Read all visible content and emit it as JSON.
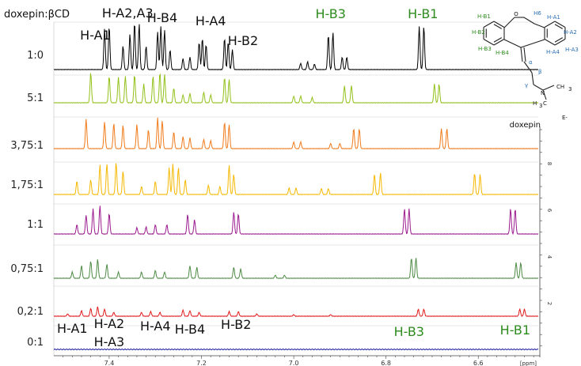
{
  "chart_data": {
    "type": "line",
    "title": "",
    "xlabel": "[ppm]",
    "ylabel": "",
    "x_range": [
      7.52,
      6.47
    ],
    "x_reversed": true,
    "x_ticks": [
      "7.4",
      "7.2",
      "7.0",
      "6.8",
      "6.6"
    ],
    "row_header": "doxepin:βCD",
    "series": [
      {
        "name": "1:0",
        "color": "#000000",
        "scale": 1.0,
        "labels_top": true,
        "peaks": [
          [
            7.41,
            52
          ],
          [
            7.4,
            55
          ],
          [
            7.37,
            30
          ],
          [
            7.355,
            45
          ],
          [
            7.345,
            60
          ],
          [
            7.335,
            58
          ],
          [
            7.32,
            30
          ],
          [
            7.295,
            48
          ],
          [
            7.288,
            55
          ],
          [
            7.28,
            50
          ],
          [
            7.268,
            25
          ],
          [
            7.24,
            14
          ],
          [
            7.225,
            16
          ],
          [
            7.205,
            35
          ],
          [
            7.198,
            40
          ],
          [
            7.19,
            32
          ],
          [
            7.15,
            40
          ],
          [
            7.142,
            35
          ],
          [
            7.133,
            25
          ],
          [
            6.985,
            8
          ],
          [
            6.97,
            10
          ],
          [
            6.955,
            7
          ],
          [
            6.925,
            44
          ],
          [
            6.915,
            47
          ],
          [
            6.895,
            16
          ],
          [
            6.885,
            16
          ],
          [
            6.728,
            55
          ],
          [
            6.718,
            55
          ]
        ]
      },
      {
        "name": "5:1",
        "color": "#92c11a",
        "scale": 0.85,
        "peaks": [
          [
            7.44,
            45
          ],
          [
            7.4,
            40
          ],
          [
            7.38,
            38
          ],
          [
            7.365,
            40
          ],
          [
            7.345,
            42
          ],
          [
            7.325,
            28
          ],
          [
            7.305,
            40
          ],
          [
            7.29,
            45
          ],
          [
            7.28,
            42
          ],
          [
            7.26,
            22
          ],
          [
            7.24,
            12
          ],
          [
            7.225,
            14
          ],
          [
            7.195,
            16
          ],
          [
            7.18,
            12
          ],
          [
            7.15,
            38
          ],
          [
            7.14,
            35
          ],
          [
            7.0,
            10
          ],
          [
            6.985,
            10
          ],
          [
            6.96,
            8
          ],
          [
            6.89,
            25
          ],
          [
            6.875,
            26
          ],
          [
            6.695,
            28
          ],
          [
            6.685,
            28
          ]
        ]
      },
      {
        "name": "3,75:1",
        "color": "#f07a1a",
        "scale": 0.85,
        "peaks": [
          [
            7.45,
            44
          ],
          [
            7.41,
            40
          ],
          [
            7.39,
            38
          ],
          [
            7.37,
            35
          ],
          [
            7.34,
            36
          ],
          [
            7.315,
            28
          ],
          [
            7.295,
            46
          ],
          [
            7.285,
            42
          ],
          [
            7.26,
            25
          ],
          [
            7.24,
            18
          ],
          [
            7.225,
            16
          ],
          [
            7.195,
            14
          ],
          [
            7.18,
            12
          ],
          [
            7.15,
            40
          ],
          [
            7.14,
            36
          ],
          [
            7.0,
            10
          ],
          [
            6.985,
            10
          ],
          [
            6.92,
            8
          ],
          [
            6.9,
            8
          ],
          [
            6.87,
            30
          ],
          [
            6.858,
            30
          ],
          [
            6.68,
            30
          ],
          [
            6.668,
            30
          ]
        ]
      },
      {
        "name": "1,75:1",
        "color": "#f5b800",
        "scale": 0.85,
        "peaks": [
          [
            7.47,
            20
          ],
          [
            7.44,
            22
          ],
          [
            7.42,
            44
          ],
          [
            7.405,
            46
          ],
          [
            7.385,
            48
          ],
          [
            7.37,
            35
          ],
          [
            7.33,
            12
          ],
          [
            7.3,
            20
          ],
          [
            7.27,
            40
          ],
          [
            7.262,
            46
          ],
          [
            7.25,
            40
          ],
          [
            7.235,
            22
          ],
          [
            7.185,
            14
          ],
          [
            7.16,
            12
          ],
          [
            7.14,
            44
          ],
          [
            7.13,
            30
          ],
          [
            7.01,
            10
          ],
          [
            6.995,
            10
          ],
          [
            6.94,
            9
          ],
          [
            6.925,
            9
          ],
          [
            6.825,
            30
          ],
          [
            6.812,
            32
          ],
          [
            6.608,
            32
          ],
          [
            6.596,
            30
          ]
        ]
      },
      {
        "name": "1:1",
        "color": "#9b1a8e",
        "scale": 1.0,
        "peaks": [
          [
            7.47,
            12
          ],
          [
            7.45,
            24
          ],
          [
            7.435,
            32
          ],
          [
            7.42,
            36
          ],
          [
            7.4,
            26
          ],
          [
            7.34,
            8
          ],
          [
            7.32,
            9
          ],
          [
            7.3,
            12
          ],
          [
            7.275,
            12
          ],
          [
            7.23,
            25
          ],
          [
            7.215,
            18
          ],
          [
            7.13,
            28
          ],
          [
            7.12,
            26
          ],
          [
            6.76,
            32
          ],
          [
            6.75,
            32
          ],
          [
            6.53,
            32
          ],
          [
            6.52,
            32
          ]
        ]
      },
      {
        "name": "0,75:1",
        "color": "#4e8a45",
        "scale": 1.0,
        "peaks": [
          [
            7.48,
            8
          ],
          [
            7.46,
            16
          ],
          [
            7.44,
            22
          ],
          [
            7.425,
            24
          ],
          [
            7.405,
            18
          ],
          [
            7.38,
            8
          ],
          [
            7.33,
            8
          ],
          [
            7.3,
            10
          ],
          [
            7.28,
            8
          ],
          [
            7.225,
            16
          ],
          [
            7.21,
            14
          ],
          [
            7.13,
            14
          ],
          [
            7.115,
            12
          ],
          [
            7.04,
            4
          ],
          [
            7.02,
            4
          ],
          [
            6.745,
            26
          ],
          [
            6.735,
            26
          ],
          [
            6.518,
            20
          ],
          [
            6.508,
            20
          ]
        ]
      },
      {
        "name": "0,2:1",
        "color": "#e0191b",
        "scale": 1.0,
        "peaks": [
          [
            7.49,
            3
          ],
          [
            7.46,
            7
          ],
          [
            7.44,
            10
          ],
          [
            7.425,
            12
          ],
          [
            7.41,
            9
          ],
          [
            7.39,
            5
          ],
          [
            7.33,
            5
          ],
          [
            7.31,
            6
          ],
          [
            7.29,
            5
          ],
          [
            7.24,
            8
          ],
          [
            7.225,
            7
          ],
          [
            7.205,
            5
          ],
          [
            7.14,
            6
          ],
          [
            7.12,
            6
          ],
          [
            7.08,
            3
          ],
          [
            7.0,
            2
          ],
          [
            6.92,
            2
          ],
          [
            6.73,
            9
          ],
          [
            6.718,
            9
          ],
          [
            6.51,
            9
          ],
          [
            6.5,
            9
          ]
        ]
      },
      {
        "name": "0:1",
        "color": "#1c1c9e",
        "scale": 1.0,
        "labels_bottom": true,
        "peaks": []
      }
    ],
    "peak_labels_top": [
      {
        "text": "H-A1",
        "x": 7.43,
        "color": "#111111"
      },
      {
        "text": "H-A2,A3",
        "x": 7.36,
        "color": "#111111"
      },
      {
        "text": "H-B4",
        "x": 7.285,
        "color": "#111111"
      },
      {
        "text": "H-A4",
        "x": 7.18,
        "color": "#111111"
      },
      {
        "text": "H-B2",
        "x": 7.11,
        "color": "#111111"
      },
      {
        "text": "H-B3",
        "x": 6.92,
        "color": "#2e8b1e"
      },
      {
        "text": "H-B1",
        "x": 6.72,
        "color": "#2e8b1e"
      }
    ],
    "peak_labels_bottom": [
      {
        "text": "H-A1",
        "x": 7.48,
        "color": "#111111"
      },
      {
        "text": "H-A2",
        "x": 7.4,
        "color": "#111111"
      },
      {
        "text": "H-A3",
        "x": 7.4,
        "color": "#111111"
      },
      {
        "text": "H-A4",
        "x": 7.3,
        "color": "#111111"
      },
      {
        "text": "H-B4",
        "x": 7.225,
        "color": "#111111"
      },
      {
        "text": "H-B2",
        "x": 7.125,
        "color": "#111111"
      },
      {
        "text": "H-B3",
        "x": 6.75,
        "color": "#2e8b1e"
      },
      {
        "text": "H-B1",
        "x": 6.52,
        "color": "#2e8b1e"
      }
    ],
    "right_axis": {
      "ticks": [
        "8",
        "6",
        "4",
        "2"
      ]
    },
    "structure": {
      "title": "doxepin",
      "atom_labels": [
        {
          "text": "O",
          "color": "#111111"
        },
        {
          "text": "H6",
          "color": "#2a6fb3"
        },
        {
          "text": "H-B1",
          "color": "#2e8b1e"
        },
        {
          "text": "H-B2",
          "color": "#2e8b1e"
        },
        {
          "text": "H-B3",
          "color": "#2e8b1e"
        },
        {
          "text": "H-B4",
          "color": "#2e8b1e"
        },
        {
          "text": "H-A1",
          "color": "#2a6fb3"
        },
        {
          "text": "H-A2",
          "color": "#2a6fb3"
        },
        {
          "text": "H-A3",
          "color": "#2a6fb3"
        },
        {
          "text": "H-A4",
          "color": "#2a6fb3"
        },
        {
          "text": "α",
          "color": "#2a6fb3"
        },
        {
          "text": "β",
          "color": "#2a6fb3"
        },
        {
          "text": "γ",
          "color": "#2a6fb3"
        },
        {
          "text": "N",
          "color": "#111111"
        },
        {
          "text": "CH",
          "color": "#111111"
        },
        {
          "text": "3",
          "color": "#111111"
        },
        {
          "text": "H",
          "color": "#111111"
        },
        {
          "text": "C",
          "color": "#111111"
        },
        {
          "text": "3",
          "color": "#111111"
        },
        {
          "text": "E-",
          "color": "#111111"
        }
      ]
    }
  }
}
